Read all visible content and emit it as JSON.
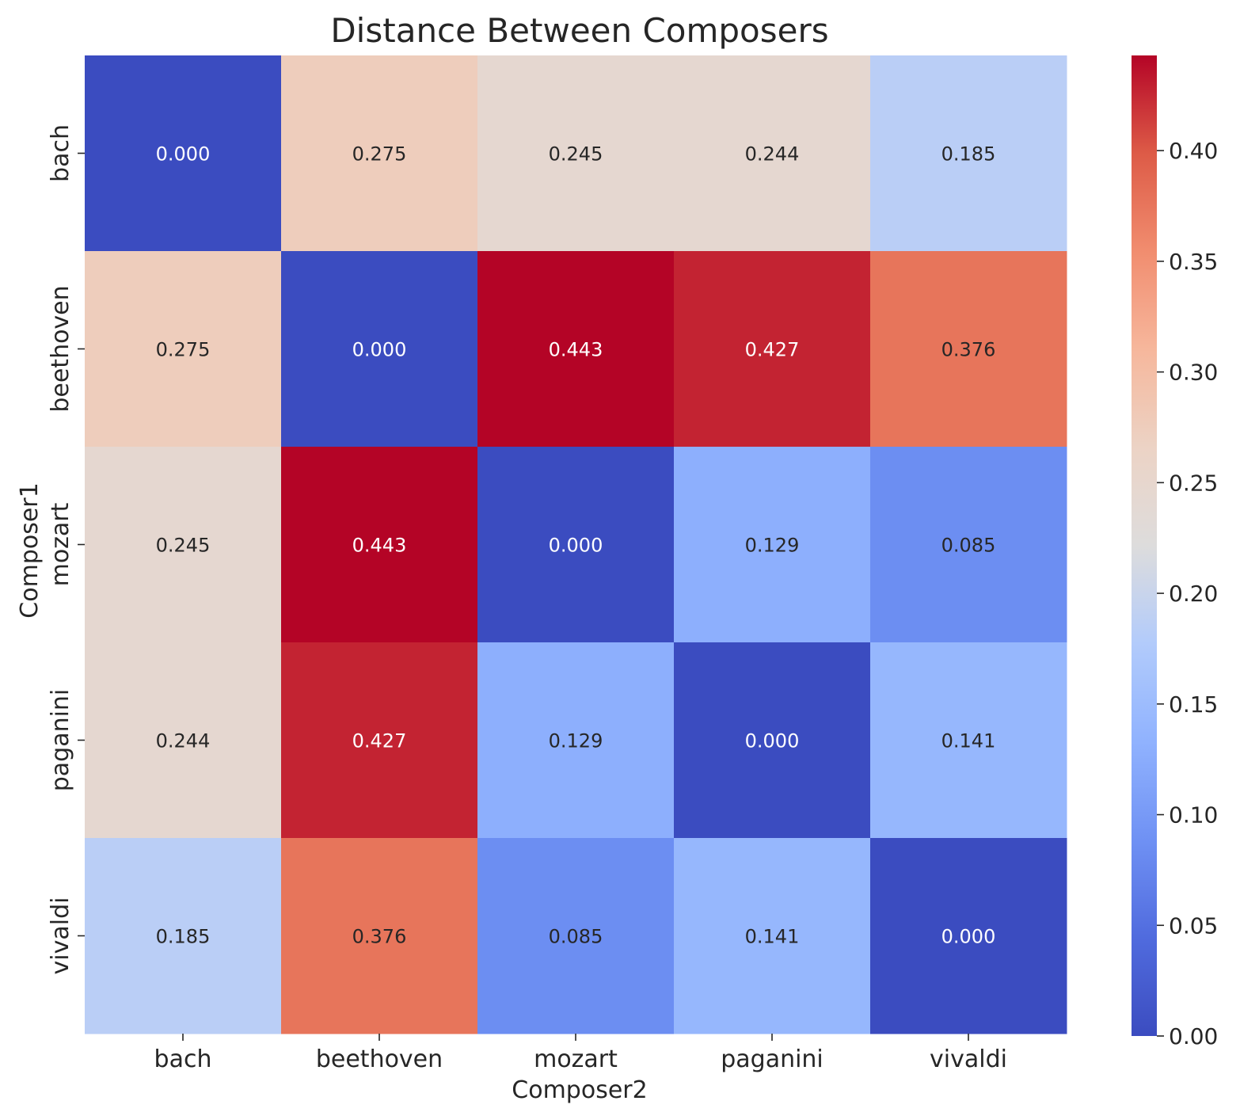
{
  "chart_data": {
    "type": "heatmap",
    "title": "Distance Between Composers",
    "xlabel": "Composer2",
    "ylabel": "Composer1",
    "x_categories": [
      "bach",
      "beethoven",
      "mozart",
      "paganini",
      "vivaldi"
    ],
    "y_categories": [
      "bach",
      "beethoven",
      "mozart",
      "paganini",
      "vivaldi"
    ],
    "values": [
      [
        0.0,
        0.275,
        0.245,
        0.244,
        0.185
      ],
      [
        0.275,
        0.0,
        0.443,
        0.427,
        0.376
      ],
      [
        0.245,
        0.443,
        0.0,
        0.129,
        0.085
      ],
      [
        0.244,
        0.427,
        0.129,
        0.0,
        0.141
      ],
      [
        0.185,
        0.376,
        0.085,
        0.141,
        0.0
      ]
    ],
    "annotation_format": "3 decimals",
    "colormap": "coolwarm",
    "colors": {
      "low": "#3b4cc0",
      "mid": "#dddcdc",
      "high": "#b40426"
    },
    "colorbar": {
      "range": [
        0,
        0.443
      ],
      "ticks": [
        0.0,
        0.05,
        0.1,
        0.15,
        0.2,
        0.25,
        0.3,
        0.35,
        0.4
      ],
      "tick_labels": [
        "0.00",
        "0.05",
        "0.10",
        "0.15",
        "0.20",
        "0.25",
        "0.30",
        "0.35",
        "0.40"
      ],
      "position": "right"
    },
    "grid": false
  }
}
